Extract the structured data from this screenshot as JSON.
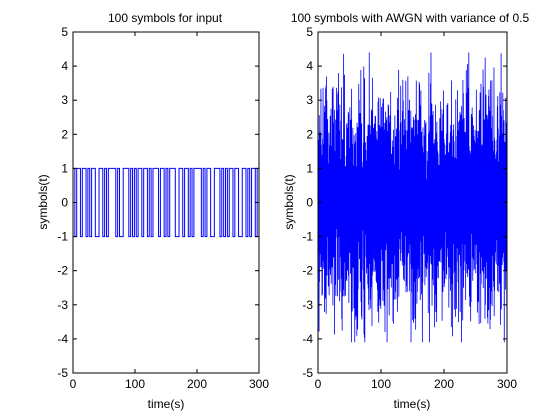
{
  "chart_data": [
    {
      "type": "line",
      "title": "100 symbols for input",
      "xlabel": "time(s)",
      "ylabel": "symbols(t)",
      "xlim": [
        0,
        300
      ],
      "ylim": [
        -5,
        5
      ],
      "xticks": [
        0,
        100,
        200,
        300
      ],
      "yticks": [
        5,
        4,
        3,
        2,
        1,
        0,
        -1,
        -2,
        -3,
        -4,
        -5
      ],
      "grid": false,
      "color": "#0000ff",
      "series": [
        {
          "symbols_per_step": 3,
          "values": [
            1,
            -1,
            1,
            1,
            -1,
            1,
            1,
            -1,
            1,
            -1,
            1,
            1,
            -1,
            -1,
            1,
            1,
            -1,
            1,
            -1,
            1,
            1,
            1,
            1,
            -1,
            1,
            -1,
            -1,
            1,
            1,
            1,
            -1,
            1,
            -1,
            1,
            -1,
            1,
            1,
            -1,
            1,
            1,
            -1,
            1,
            -1,
            1,
            1,
            1,
            -1,
            1,
            1,
            -1,
            1,
            -1,
            1,
            1,
            1,
            -1,
            -1,
            1,
            1,
            -1,
            1,
            1,
            -1,
            1,
            -1,
            1,
            1,
            1,
            1,
            -1,
            1,
            -1,
            1,
            1,
            -1,
            -1,
            1,
            1,
            1,
            -1,
            1,
            -1,
            1,
            -1,
            1,
            1,
            -1,
            1,
            1,
            -1,
            -1,
            1,
            1,
            -1,
            1,
            -1,
            1,
            1,
            -1,
            1
          ]
        }
      ]
    },
    {
      "type": "line",
      "title": "100 symbols with AWGN with variance of 0.5",
      "xlabel": "time(s)",
      "ylabel": "symbols(t)",
      "xlim": [
        0,
        300
      ],
      "ylim": [
        -5,
        5
      ],
      "xticks": [
        0,
        100,
        200,
        300
      ],
      "yticks": [
        5,
        4,
        3,
        2,
        1,
        0,
        -1,
        -2,
        -3,
        -4,
        -5
      ],
      "grid": false,
      "color": "#0000ff",
      "series": [
        {
          "y_range_observed": [
            -4.1,
            4.4
          ],
          "envelope_typical": [
            -3.4,
            3.5
          ]
        }
      ]
    }
  ]
}
